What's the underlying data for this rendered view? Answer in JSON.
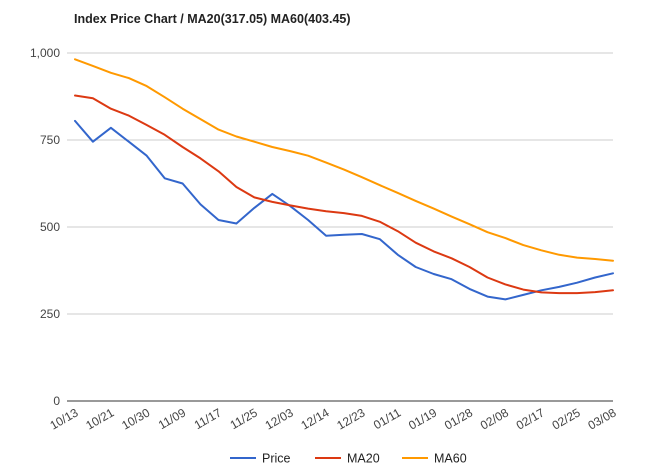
{
  "title": "Index Price Chart / MA20(317.05) MA60(403.45)",
  "chart_data": {
    "type": "line",
    "title": "Index Price Chart / MA20(317.05) MA60(403.45)",
    "xlabel": "",
    "ylabel": "",
    "ylim": [
      0,
      1000
    ],
    "yticks": [
      0,
      250,
      500,
      750,
      1000
    ],
    "ytick_labels": [
      "0",
      "250",
      "500",
      "750",
      "1,000"
    ],
    "grid": "horizontal",
    "legend_position": "bottom",
    "x": [
      "10/13",
      "10/17",
      "10/21",
      "10/26",
      "10/30",
      "11/04",
      "11/09",
      "11/13",
      "11/17",
      "11/21",
      "11/25",
      "11/29",
      "12/03",
      "12/09",
      "12/14",
      "12/18",
      "12/23",
      "12/28",
      "01/11",
      "01/15",
      "01/19",
      "01/24",
      "01/28",
      "02/02",
      "02/08",
      "02/12",
      "02/17",
      "02/21",
      "02/25",
      "03/03",
      "03/08"
    ],
    "xtick_labels": [
      "10/13",
      "10/21",
      "10/30",
      "11/09",
      "11/17",
      "11/25",
      "12/03",
      "12/14",
      "12/23",
      "01/11",
      "01/19",
      "01/28",
      "02/08",
      "02/17",
      "02/25",
      "03/08"
    ],
    "series": [
      {
        "name": "Price",
        "color": "#3366cc",
        "values": [
          805,
          745,
          785,
          745,
          705,
          640,
          625,
          565,
          520,
          510,
          555,
          595,
          560,
          520,
          475,
          478,
          480,
          465,
          420,
          385,
          365,
          350,
          322,
          300,
          292,
          305,
          318,
          328,
          340,
          355,
          367
        ]
      },
      {
        "name": "MA20",
        "color": "#dc3912",
        "values": [
          878,
          870,
          840,
          820,
          793,
          765,
          730,
          697,
          660,
          615,
          585,
          572,
          562,
          553,
          545,
          540,
          532,
          515,
          488,
          455,
          430,
          410,
          385,
          355,
          335,
          320,
          312,
          310,
          310,
          313,
          318
        ]
      },
      {
        "name": "MA60",
        "color": "#ff9900",
        "values": [
          982,
          963,
          943,
          928,
          905,
          873,
          840,
          810,
          780,
          760,
          745,
          730,
          718,
          705,
          685,
          665,
          643,
          620,
          598,
          575,
          553,
          530,
          508,
          485,
          468,
          448,
          433,
          420,
          412,
          408,
          403
        ]
      }
    ]
  }
}
